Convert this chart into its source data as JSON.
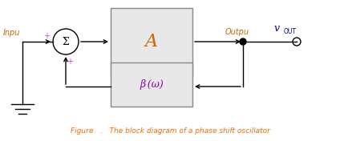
{
  "fig_width": 4.24,
  "fig_height": 1.76,
  "dpi": 100,
  "bg_color": "#ffffff",
  "line_color": "#000000",
  "box_fill": "#e8e8e8",
  "box_edge": "#888888",
  "text_color_input": "#cc6600",
  "text_color_output": "#cc6600",
  "text_color_vout_v": "#000080",
  "text_color_vout_out": "#000080",
  "text_color_fig": "#ff6600",
  "text_color_plus": "#cc44cc",
  "text_color_amp": "#cc6600",
  "text_color_beta": "#8800aa",
  "input_label": "Inpu",
  "output_label": "Outpu",
  "vout_label_v": "v",
  "vout_label_out": "OUT",
  "amp_label": "A",
  "beta_label": "β (ω)",
  "sigma_label": "Σ",
  "figure_caption": "Figure   .   The block diagram of a phase shift oscillator"
}
